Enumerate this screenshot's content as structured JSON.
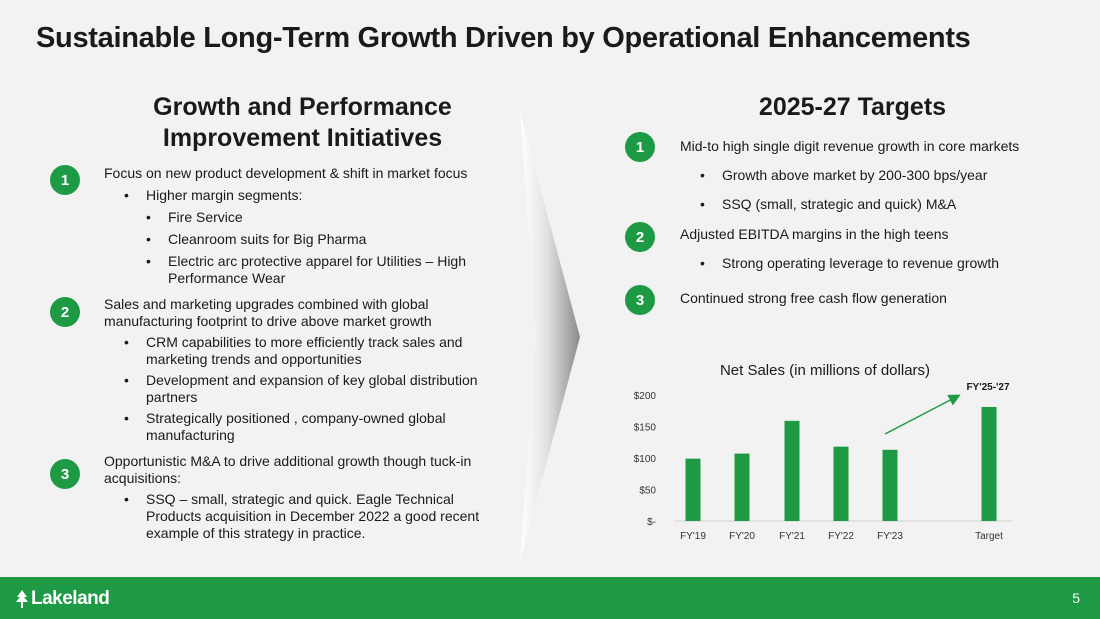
{
  "title": "Sustainable Long-Term Growth Driven by Operational Enhancements",
  "left": {
    "heading": "Growth and Performance Improvement Initiatives",
    "items": [
      {
        "number": "1",
        "text": "Focus on new product development & shift in market focus",
        "bullets": [
          "Higher margin segments:"
        ],
        "subbullets": [
          "Fire Service",
          "Cleanroom suits for Big Pharma",
          "Electric arc protective apparel for Utilities – High Performance Wear"
        ]
      },
      {
        "number": "2",
        "text": "Sales and marketing upgrades combined with global manufacturing footprint to drive above market growth",
        "bullets": [
          "CRM capabilities to more efficiently track sales and marketing trends  and opportunities",
          "Development  and expansion of key global distribution partners",
          "Strategically positioned , company-owned  global manufacturing"
        ]
      },
      {
        "number": "3",
        "text": "Opportunistic M&A to drive additional growth though tuck-in acquisitions:",
        "bullets": [
          "SSQ – small, strategic and quick. Eagle Technical Products acquisition in December 2022 a good recent example of this strategy in practice."
        ]
      }
    ]
  },
  "right": {
    "heading": "2025-27 Targets",
    "items": [
      {
        "number": "1",
        "text": "Mid-to high single digit revenue growth in core markets",
        "bullets": [
          "Growth above market by 200-300 bps/year",
          "SSQ (small, strategic and quick) M&A"
        ]
      },
      {
        "number": "2",
        "text": "Adjusted EBITDA margins in the high teens",
        "bullets": [
          "Strong operating leverage to revenue growth"
        ]
      },
      {
        "number": "3",
        "text": "Continued strong free cash flow generation",
        "bullets": []
      }
    ]
  },
  "chart_data": {
    "type": "bar",
    "title": "Net Sales (in millions of dollars)",
    "categories": [
      "FY'19",
      "FY'20",
      "FY'21",
      "FY'22",
      "FY'23",
      "Target"
    ],
    "values": [
      99,
      107,
      159,
      118,
      113,
      181
    ],
    "ytick_labels": [
      "$-",
      "$50",
      "$100",
      "$150",
      "$200"
    ],
    "yticks": [
      0,
      50,
      100,
      150,
      200
    ],
    "ylim": [
      0,
      200
    ],
    "annotation": "FY'25-'27",
    "bar_color": "#1e9a45",
    "grid": false
  },
  "footer": {
    "logo": "Lakeland",
    "page_number": "5"
  },
  "bullet_glyph": "•",
  "colors": {
    "accent": "#1e9a45",
    "background": "#f2f2f2"
  }
}
